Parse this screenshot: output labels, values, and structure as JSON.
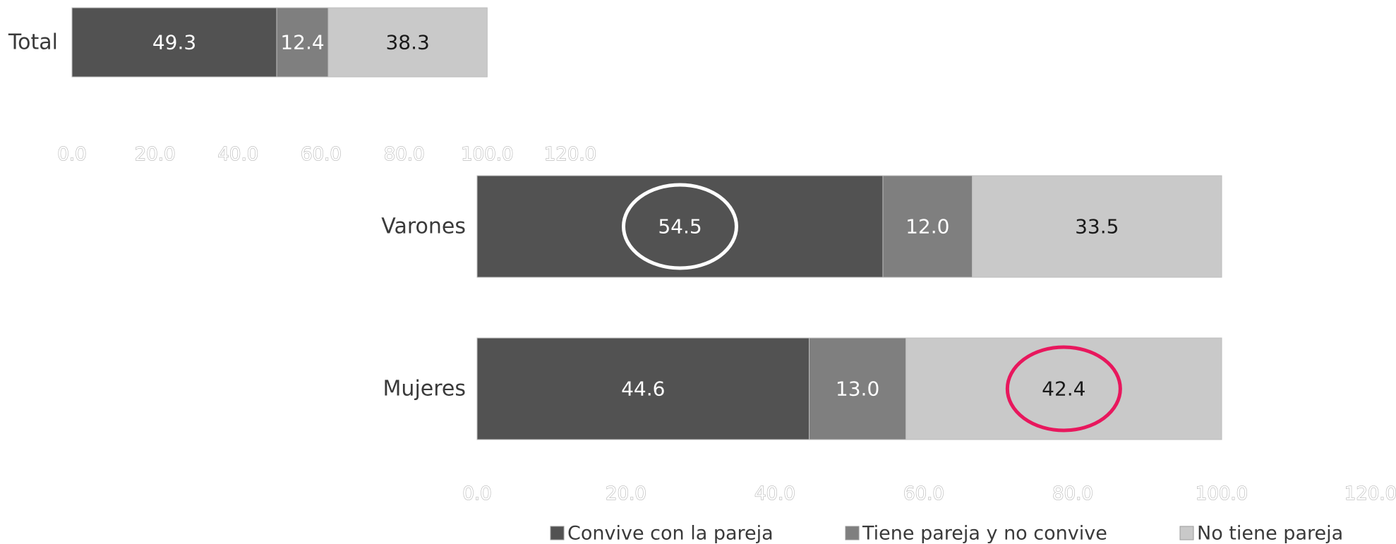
{
  "chart_data": [
    {
      "type": "bar",
      "orientation": "horizontal",
      "stacked": true,
      "categories": [
        "Total"
      ],
      "series": [
        {
          "name": "Convive con la pareja",
          "values": [
            49.3
          ],
          "color": "#525252",
          "label_color": "#ffffff"
        },
        {
          "name": "Tiene pareja y no convive",
          "values": [
            12.4
          ],
          "color": "#7f7f7f",
          "label_color": "#ffffff"
        },
        {
          "name": "No tiene pareja",
          "values": [
            38.3
          ],
          "color": "#c9c9c9",
          "label_color": "#1a1a1a"
        }
      ],
      "xlim": [
        0,
        120
      ],
      "xticks": [
        "0.0",
        "20.0",
        "40.0",
        "60.0",
        "80.0",
        "100.0",
        "120.0"
      ],
      "grid": false,
      "legend": "none"
    },
    {
      "type": "bar",
      "orientation": "horizontal",
      "stacked": true,
      "categories": [
        "Varones",
        "Mujeres"
      ],
      "series": [
        {
          "name": "Convive con la pareja",
          "values": [
            54.5,
            44.6
          ],
          "color": "#525252",
          "label_color": "#ffffff"
        },
        {
          "name": "Tiene pareja y no convive",
          "values": [
            12.0,
            13.0
          ],
          "color": "#7f7f7f",
          "label_color": "#ffffff"
        },
        {
          "name": "No tiene pareja",
          "values": [
            33.5,
            42.4
          ],
          "color": "#c9c9c9",
          "label_color": "#1a1a1a"
        }
      ],
      "xlim": [
        0,
        120
      ],
      "xticks": [
        "0.0",
        "20.0",
        "40.0",
        "60.0",
        "80.0",
        "100.0",
        "120.0"
      ],
      "grid": false,
      "legend": "bottom",
      "annotations": [
        {
          "type": "ellipse",
          "category": "Varones",
          "series": "Convive con la pareja",
          "color": "#ffffff"
        },
        {
          "type": "ellipse",
          "category": "Mujeres",
          "series": "No tiene pareja",
          "color": "#e8175d"
        }
      ]
    }
  ]
}
